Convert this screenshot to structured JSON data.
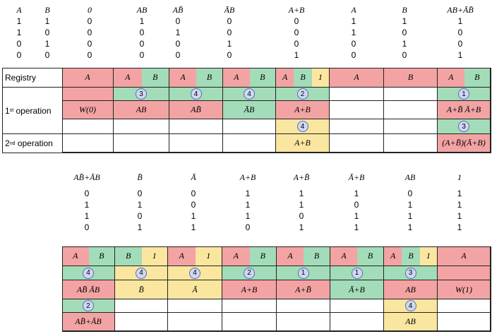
{
  "top": {
    "headers": [
      "A",
      "B",
      "0",
      "AB",
      "AB̄",
      "ĀB",
      "A+B",
      "A",
      "B",
      "AB+ĀB̄"
    ],
    "rows": [
      [
        "1",
        "1",
        "0",
        "1",
        "0",
        "0",
        "0",
        "1",
        "1",
        "1"
      ],
      [
        "1",
        "0",
        "0",
        "0",
        "1",
        "0",
        "0",
        "1",
        "0",
        "0"
      ],
      [
        "0",
        "1",
        "0",
        "0",
        "0",
        "1",
        "0",
        "0",
        "1",
        "0"
      ],
      [
        "0",
        "0",
        "0",
        "0",
        "0",
        "0",
        "1",
        "0",
        "0",
        "1"
      ]
    ],
    "row_labels": {
      "registry": "Registry",
      "op1": "1st operation",
      "op2": "2nd operation"
    },
    "op1_sup": "st",
    "op2_sup": "nd",
    "registry": [
      [
        {
          "t": "A",
          "c": "pink"
        }
      ],
      [
        {
          "t": "A",
          "c": "pink"
        },
        {
          "t": "B",
          "c": "green"
        }
      ],
      [
        {
          "t": "A",
          "c": "pink"
        },
        {
          "t": "B",
          "c": "green"
        }
      ],
      [
        {
          "t": "A",
          "c": "pink"
        },
        {
          "t": "B",
          "c": "green"
        }
      ],
      [
        {
          "t": "A",
          "c": "pink"
        },
        {
          "t": "B",
          "c": "green"
        },
        {
          "t": "1",
          "c": "yellow"
        }
      ],
      [
        {
          "t": "A",
          "c": "pink"
        }
      ],
      [
        {
          "t": "B",
          "c": "pink"
        }
      ],
      [
        {
          "t": "A",
          "c": "pink"
        },
        {
          "t": "B",
          "c": "green"
        }
      ]
    ],
    "op1_circle": [
      "",
      "3",
      "4",
      "4",
      "2",
      "",
      "",
      "1"
    ],
    "op1_circle_color": [
      "pink",
      "green",
      "green",
      "green",
      "green",
      "white",
      "white",
      "green"
    ],
    "op1_value": [
      "W(0)",
      "AB",
      "AB̄",
      "ĀB",
      "A+B",
      "",
      "",
      "A+B̄  Ā+B"
    ],
    "op1_value_color": [
      "pink",
      "pink",
      "pink",
      "green",
      "pink",
      "white",
      "white",
      "pink"
    ],
    "op2_circle": [
      "",
      "",
      "",
      "",
      "4",
      "",
      "",
      "3"
    ],
    "op2_circle_color": [
      "white",
      "white",
      "white",
      "white",
      "yellow",
      "white",
      "white",
      "green"
    ],
    "op2_value": [
      "",
      "",
      "",
      "",
      "A+B",
      "",
      "",
      "(A+B̄)(Ā+B)"
    ],
    "op2_value_color": [
      "white",
      "white",
      "white",
      "white",
      "yellow",
      "white",
      "white",
      "pink"
    ]
  },
  "bottom": {
    "headers": [
      "AB̄+ĀB",
      "B̄",
      "Ā",
      "A+B",
      "A+B̄",
      "Ā+B",
      "AB",
      "1"
    ],
    "rows": [
      [
        "0",
        "0",
        "0",
        "1",
        "1",
        "1",
        "0",
        "1"
      ],
      [
        "1",
        "1",
        "0",
        "1",
        "1",
        "0",
        "1",
        "1"
      ],
      [
        "1",
        "0",
        "1",
        "1",
        "0",
        "1",
        "1",
        "1"
      ],
      [
        "0",
        "1",
        "1",
        "0",
        "1",
        "1",
        "1",
        "1"
      ]
    ],
    "registry": [
      [
        {
          "t": "A",
          "c": "pink"
        },
        {
          "t": "B",
          "c": "green"
        }
      ],
      [
        {
          "t": "B",
          "c": "green"
        },
        {
          "t": "1",
          "c": "yellow"
        }
      ],
      [
        {
          "t": "A",
          "c": "pink"
        },
        {
          "t": "1",
          "c": "yellow"
        }
      ],
      [
        {
          "t": "A",
          "c": "pink"
        },
        {
          "t": "B",
          "c": "green"
        }
      ],
      [
        {
          "t": "A",
          "c": "pink"
        },
        {
          "t": "B",
          "c": "green"
        }
      ],
      [
        {
          "t": "A",
          "c": "pink"
        },
        {
          "t": "B",
          "c": "green"
        }
      ],
      [
        {
          "t": "A",
          "c": "pink"
        },
        {
          "t": "B",
          "c": "green"
        },
        {
          "t": "1",
          "c": "yellow"
        }
      ],
      [
        {
          "t": "A",
          "c": "pink"
        }
      ]
    ],
    "op1_circle": [
      "4",
      "4",
      "4",
      "2",
      "1",
      "1",
      "3",
      ""
    ],
    "op1_circle_color": [
      "green",
      "yellow",
      "yellow",
      "green",
      "green",
      "green",
      "green",
      "pink"
    ],
    "op1_value": [
      "AB̄  ĀB",
      "B̄",
      "Ā",
      "A+B",
      "A+B̄",
      "Ā+B",
      "AB",
      "W(1)"
    ],
    "op1_value_color": [
      "pink",
      "yellow",
      "yellow",
      "pink",
      "pink",
      "green",
      "pink",
      "pink"
    ],
    "op2_circle": [
      "2",
      "",
      "",
      "",
      "",
      "",
      "4",
      ""
    ],
    "op2_circle_color": [
      "green",
      "white",
      "white",
      "white",
      "white",
      "white",
      "yellow",
      "white"
    ],
    "op2_value": [
      "AB̄+ĀB",
      "",
      "",
      "",
      "",
      "",
      "AB",
      ""
    ],
    "op2_value_color": [
      "pink",
      "white",
      "white",
      "white",
      "white",
      "white",
      "yellow",
      "white"
    ]
  }
}
